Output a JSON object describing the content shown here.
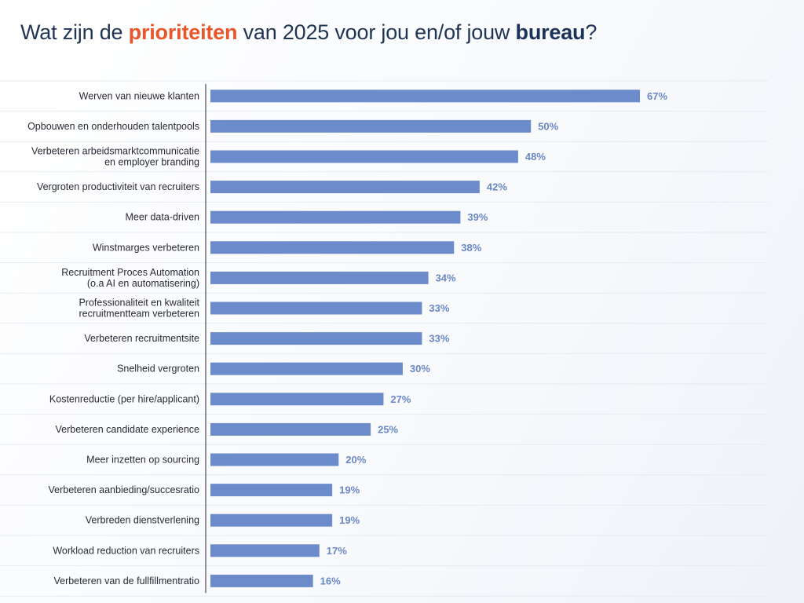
{
  "title": {
    "part1": "Wat zijn de ",
    "highlight1": "prioriteiten",
    "part2": " van 2025 voor jou en/of jouw ",
    "highlight2": "bureau",
    "part3": "?"
  },
  "colors": {
    "bar": "#6b8bcb",
    "value_label": "#6a87c6",
    "title_highlight_1": "#e8562a",
    "title_highlight_2": "#1b3358"
  },
  "chart_data": {
    "type": "bar",
    "orientation": "horizontal",
    "title": "Wat zijn de prioriteiten van 2025 voor jou en/of jouw bureau?",
    "categories": [
      [
        "Werven van nieuwe klanten"
      ],
      [
        "Opbouwen en onderhouden talentpools"
      ],
      [
        "Verbeteren arbeidsmarktcommunicatie",
        "en employer branding"
      ],
      [
        "Vergroten productiviteit van recruiters"
      ],
      [
        "Meer data-driven"
      ],
      [
        "Winstmarges verbeteren"
      ],
      [
        "Recruitment Proces Automation",
        "(o.a AI en automatisering)"
      ],
      [
        "Professionaliteit en kwaliteit",
        "recruitmentteam verbeteren"
      ],
      [
        "Verbeteren recruitmentsite"
      ],
      [
        "Snelheid vergroten"
      ],
      [
        "Kostenreductie (per hire/applicant)"
      ],
      [
        "Verbeteren candidate experience"
      ],
      [
        "Meer inzetten op sourcing"
      ],
      [
        "Verbeteren aanbieding/succesratio"
      ],
      [
        "Verbreden dienstverlening"
      ],
      [
        "Workload reduction van recruiters"
      ],
      [
        "Verbeteren van de fullfillmentratio"
      ]
    ],
    "values": [
      67,
      50,
      48,
      42,
      39,
      38,
      34,
      33,
      33,
      30,
      27,
      25,
      20,
      19,
      19,
      17,
      16
    ],
    "value_labels": [
      "67%",
      "50%",
      "48%",
      "42%",
      "39%",
      "38%",
      "34%",
      "33%",
      "33%",
      "30%",
      "27%",
      "25%",
      "20%",
      "19%",
      "19%",
      "17%",
      "16%"
    ],
    "unit": "%",
    "xlim": [
      0,
      100
    ],
    "grid": false,
    "legend": "none"
  }
}
